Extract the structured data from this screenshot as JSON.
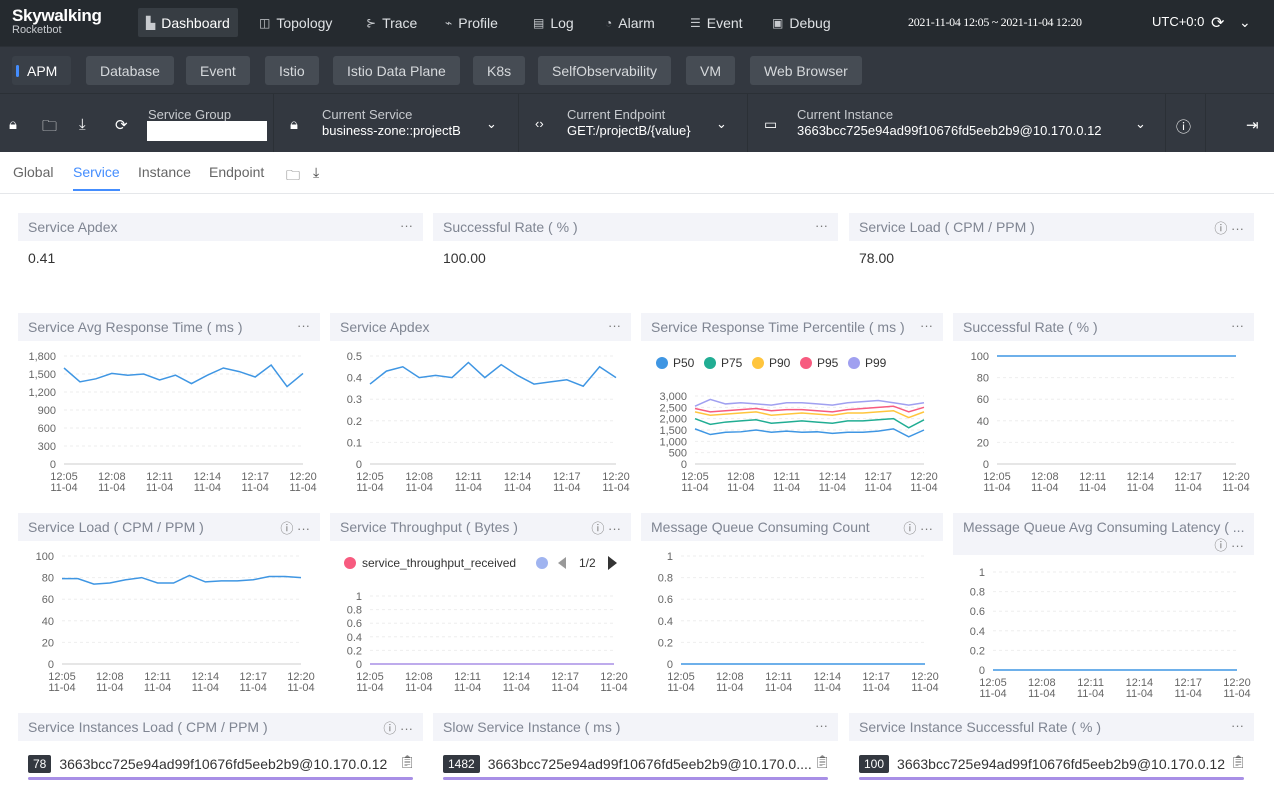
{
  "app": {
    "name": "Skywalking",
    "subname": "Rocketbot"
  },
  "nav": [
    {
      "label": "Dashboard",
      "icon": "dashboard-icon",
      "glyph": "▙"
    },
    {
      "label": "Topology",
      "icon": "topology-icon",
      "glyph": "◫"
    },
    {
      "label": "Trace",
      "icon": "trace-icon",
      "glyph": "⊱"
    },
    {
      "label": "Profile",
      "icon": "profile-icon",
      "glyph": "⌁"
    },
    {
      "label": "Log",
      "icon": "log-icon",
      "glyph": "▤"
    },
    {
      "label": "Alarm",
      "icon": "alarm-icon",
      "glyph": "◔"
    },
    {
      "label": "Event",
      "icon": "event-icon",
      "glyph": "☰"
    },
    {
      "label": "Debug",
      "icon": "debug-icon",
      "glyph": "▣"
    }
  ],
  "time_range": "2021-11-04 12:05 ~ 2021-11-04 12:20",
  "timezone": "UTC+0:0",
  "layer_tabs": [
    "APM",
    "Database",
    "Event",
    "Istio",
    "Istio Data Plane",
    "K8s",
    "SelfObservability",
    "VM",
    "Web Browser"
  ],
  "selectors": {
    "group_label": "Service Group",
    "group_value": "",
    "service_label": "Current Service",
    "service_value": "business-zone::projectB",
    "endpoint_label": "Current Endpoint",
    "endpoint_value": "GET:/projectB/{value}",
    "instance_label": "Current Instance",
    "instance_value": "3663bcc725e94ad99f10676fd5eeb2b9@10.170.0.12"
  },
  "sub_tabs": [
    "Global",
    "Service",
    "Instance",
    "Endpoint"
  ],
  "cards": {
    "apdex": {
      "title": "Service Apdex",
      "value": "0.41"
    },
    "success": {
      "title": "Successful Rate ( % )",
      "value": "100.00"
    },
    "load": {
      "title": "Service Load ( CPM / PPM )",
      "value": "78.00"
    },
    "avg_rt": {
      "title": "Service Avg Response Time ( ms )"
    },
    "apdex_chart": {
      "title": "Service Apdex"
    },
    "percentile": {
      "title": "Service Response Time Percentile ( ms )"
    },
    "success_chart": {
      "title": "Successful Rate ( % )"
    },
    "load_chart": {
      "title": "Service Load ( CPM / PPM )"
    },
    "throughput": {
      "title": "Service Throughput ( Bytes )",
      "legend": "service_throughput_received",
      "page": "1/2"
    },
    "mq_count": {
      "title": "Message Queue Consuming Count"
    },
    "mq_latency": {
      "title": "Message Queue Avg Consuming Latency ( ..."
    },
    "inst_load": {
      "title": "Service Instances Load ( CPM / PPM )",
      "badge": "78",
      "name": "3663bcc725e94ad99f10676fd5eeb2b9@10.170.0.12"
    },
    "slow_inst": {
      "title": "Slow Service Instance ( ms )",
      "badge": "1482",
      "name": "3663bcc725e94ad99f10676fd5eeb2b9@10.170.0...."
    },
    "inst_success": {
      "title": "Service Instance Successful Rate ( % )",
      "badge": "100",
      "name": "3663bcc725e94ad99f10676fd5eeb2b9@10.170.0.12"
    }
  },
  "chart_data": [
    {
      "id": "avg_rt",
      "type": "line",
      "x": [
        "12:05\n11-04",
        "12:06\n11-04",
        "12:07\n11-04",
        "12:08\n11-04",
        "12:09\n11-04",
        "12:10\n11-04",
        "12:11\n11-04",
        "12:12\n11-04",
        "12:13\n11-04",
        "12:14\n11-04",
        "12:15\n11-04",
        "12:16\n11-04",
        "12:17\n11-04",
        "12:18\n11-04",
        "12:19\n11-04",
        "12:20\n11-04"
      ],
      "xticks": [
        "12:05\n11-04",
        "12:08\n11-04",
        "12:11\n11-04",
        "12:14\n11-04",
        "12:17\n11-04",
        "12:20\n11-04"
      ],
      "yticks": [
        "0",
        "300",
        "600",
        "900",
        "1,200",
        "1,500",
        "1,800"
      ],
      "ylim": [
        0,
        1800
      ],
      "series": [
        {
          "color": "#3f96e3",
          "values": [
            1600,
            1370,
            1420,
            1510,
            1480,
            1500,
            1400,
            1480,
            1340,
            1480,
            1600,
            1540,
            1450,
            1650,
            1290,
            1510
          ]
        }
      ]
    },
    {
      "id": "apdex_chart",
      "type": "line",
      "xticks": [
        "12:05\n11-04",
        "12:08\n11-04",
        "12:11\n11-04",
        "12:14\n11-04",
        "12:17\n11-04",
        "12:20\n11-04"
      ],
      "yticks": [
        "0",
        "0.1",
        "0.2",
        "0.3",
        "0.4",
        "0.5"
      ],
      "ylim": [
        0,
        0.5
      ],
      "series": [
        {
          "color": "#3f96e3",
          "values": [
            0.37,
            0.43,
            0.45,
            0.4,
            0.41,
            0.4,
            0.47,
            0.4,
            0.46,
            0.41,
            0.37,
            0.38,
            0.39,
            0.36,
            0.45,
            0.4
          ]
        }
      ]
    },
    {
      "id": "percentile",
      "type": "line",
      "xticks": [
        "12:05\n11-04",
        "12:08\n11-04",
        "12:11\n11-04",
        "12:14\n11-04",
        "12:17\n11-04",
        "12:20\n11-04"
      ],
      "yticks": [
        "0",
        "500",
        "1,000",
        "1,500",
        "2,000",
        "2,500",
        "3,000"
      ],
      "ylim": [
        0,
        3000
      ],
      "series": [
        {
          "name": "P50",
          "color": "#3f96e3",
          "values": [
            1550,
            1300,
            1400,
            1420,
            1500,
            1400,
            1450,
            1400,
            1420,
            1350,
            1400,
            1400,
            1450,
            1550,
            1200,
            1500
          ]
        },
        {
          "name": "P75",
          "color": "#21ad93",
          "values": [
            2000,
            1750,
            1850,
            1900,
            1950,
            1800,
            1850,
            1900,
            1850,
            1800,
            1900,
            1900,
            1950,
            2000,
            1600,
            1950
          ]
        },
        {
          "name": "P90",
          "color": "#ffc53d",
          "values": [
            2300,
            2150,
            2200,
            2250,
            2300,
            2150,
            2200,
            2250,
            2200,
            2150,
            2250,
            2250,
            2300,
            2350,
            2050,
            2300
          ]
        },
        {
          "name": "P95",
          "color": "#f75b7f",
          "values": [
            2450,
            2300,
            2350,
            2400,
            2450,
            2350,
            2400,
            2400,
            2350,
            2300,
            2400,
            2450,
            2500,
            2550,
            2300,
            2500
          ]
        },
        {
          "name": "P99",
          "color": "#a0a0f0",
          "values": [
            2550,
            2850,
            2650,
            2700,
            2650,
            2600,
            2700,
            2700,
            2650,
            2600,
            2700,
            2750,
            2800,
            2700,
            2600,
            2700
          ]
        }
      ]
    },
    {
      "id": "success_chart",
      "type": "line",
      "xticks": [
        "12:05\n11-04",
        "12:08\n11-04",
        "12:11\n11-04",
        "12:14\n11-04",
        "12:17\n11-04",
        "12:20\n11-04"
      ],
      "yticks": [
        "0",
        "20",
        "40",
        "60",
        "80",
        "100"
      ],
      "ylim": [
        0,
        100
      ],
      "series": [
        {
          "color": "#3f96e3",
          "values": [
            100,
            100,
            100,
            100,
            100,
            100,
            100,
            100,
            100,
            100,
            100,
            100,
            100,
            100,
            100,
            100
          ]
        }
      ]
    },
    {
      "id": "load_chart",
      "type": "line",
      "xticks": [
        "12:05\n11-04",
        "12:08\n11-04",
        "12:11\n11-04",
        "12:14\n11-04",
        "12:17\n11-04",
        "12:20\n11-04"
      ],
      "yticks": [
        "0",
        "20",
        "40",
        "60",
        "80",
        "100"
      ],
      "ylim": [
        0,
        100
      ],
      "series": [
        {
          "color": "#3f96e3",
          "values": [
            79,
            79,
            74,
            75,
            78,
            80,
            75,
            75,
            82,
            76,
            77,
            77,
            78,
            81,
            81,
            80
          ]
        }
      ]
    },
    {
      "id": "throughput",
      "type": "line",
      "xticks": [
        "12:05\n11-04",
        "12:08\n11-04",
        "12:11\n11-04",
        "12:14\n11-04",
        "12:17\n11-04",
        "12:20\n11-04"
      ],
      "yticks": [
        "0",
        "0.2",
        "0.4",
        "0.6",
        "0.8",
        "1"
      ],
      "ylim": [
        0,
        1
      ],
      "series": [
        {
          "name": "service_throughput_received",
          "color": "#a88fe6",
          "values": [
            0,
            0,
            0,
            0,
            0,
            0,
            0,
            0,
            0,
            0,
            0,
            0,
            0,
            0,
            0,
            0
          ]
        }
      ]
    },
    {
      "id": "mq_count",
      "type": "line",
      "xticks": [
        "12:05\n11-04",
        "12:08\n11-04",
        "12:11\n11-04",
        "12:14\n11-04",
        "12:17\n11-04",
        "12:20\n11-04"
      ],
      "yticks": [
        "0",
        "0.2",
        "0.4",
        "0.6",
        "0.8",
        "1"
      ],
      "ylim": [
        0,
        1
      ],
      "series": [
        {
          "color": "#3f96e3",
          "values": [
            0,
            0,
            0,
            0,
            0,
            0,
            0,
            0,
            0,
            0,
            0,
            0,
            0,
            0,
            0,
            0
          ]
        }
      ]
    },
    {
      "id": "mq_latency",
      "type": "line",
      "xticks": [
        "12:05\n11-04",
        "12:08\n11-04",
        "12:11\n11-04",
        "12:14\n11-04",
        "12:17\n11-04",
        "12:20\n11-04"
      ],
      "yticks": [
        "0",
        "0.2",
        "0.4",
        "0.6",
        "0.8",
        "1"
      ],
      "ylim": [
        0,
        1
      ],
      "series": [
        {
          "color": "#3f96e3",
          "values": [
            0,
            0,
            0,
            0,
            0,
            0,
            0,
            0,
            0,
            0,
            0,
            0,
            0,
            0,
            0,
            0
          ]
        }
      ]
    }
  ]
}
